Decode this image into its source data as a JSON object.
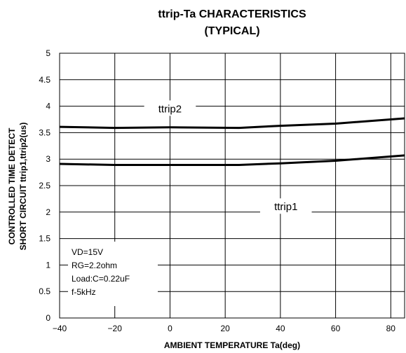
{
  "chart_data": {
    "type": "line",
    "title": [
      "ttrip-Ta CHARACTERISTICS",
      "(TYPICAL)"
    ],
    "xlabel": "AMBIENT TEMPERATURE Ta(deg)",
    "ylabel": [
      "CONTROLLED TIME DETECT",
      "SHORT CIRCUIT ttrip1,ttrip2(us)"
    ],
    "xlim": [
      -40,
      85
    ],
    "ylim": [
      0,
      5
    ],
    "xticks": [
      -40,
      -20,
      0,
      20,
      40,
      60,
      80
    ],
    "xtick_labels": [
      "−40",
      "−20",
      "0",
      "20",
      "40",
      "60",
      "80"
    ],
    "yticks": [
      0,
      0.5,
      1,
      1.5,
      2,
      2.5,
      3,
      3.5,
      4,
      4.5,
      5
    ],
    "ytick_labels": [
      "0",
      "0.5",
      "1",
      "1.5",
      "2",
      "2.5",
      "3",
      "3.5",
      "4",
      "4.5",
      "5"
    ],
    "grid": true,
    "series": [
      {
        "name": "ttrip2",
        "x": [
          -40,
          -20,
          0,
          25,
          40,
          60,
          85
        ],
        "y": [
          3.61,
          3.59,
          3.6,
          3.59,
          3.63,
          3.67,
          3.77
        ]
      },
      {
        "name": "ttrip1",
        "x": [
          -40,
          -20,
          0,
          25,
          40,
          60,
          85
        ],
        "y": [
          2.91,
          2.89,
          2.89,
          2.89,
          2.92,
          2.97,
          3.07
        ]
      }
    ],
    "series_labels": [
      {
        "text": "ttrip2",
        "x": 0,
        "y": 3.95
      },
      {
        "text": "ttrip1",
        "x": 42,
        "y": 2.1
      }
    ],
    "annotation": [
      "VD=15V",
      "RG=2.2ohm",
      "Load:C=0.22uF",
      "f-5kHz"
    ]
  }
}
